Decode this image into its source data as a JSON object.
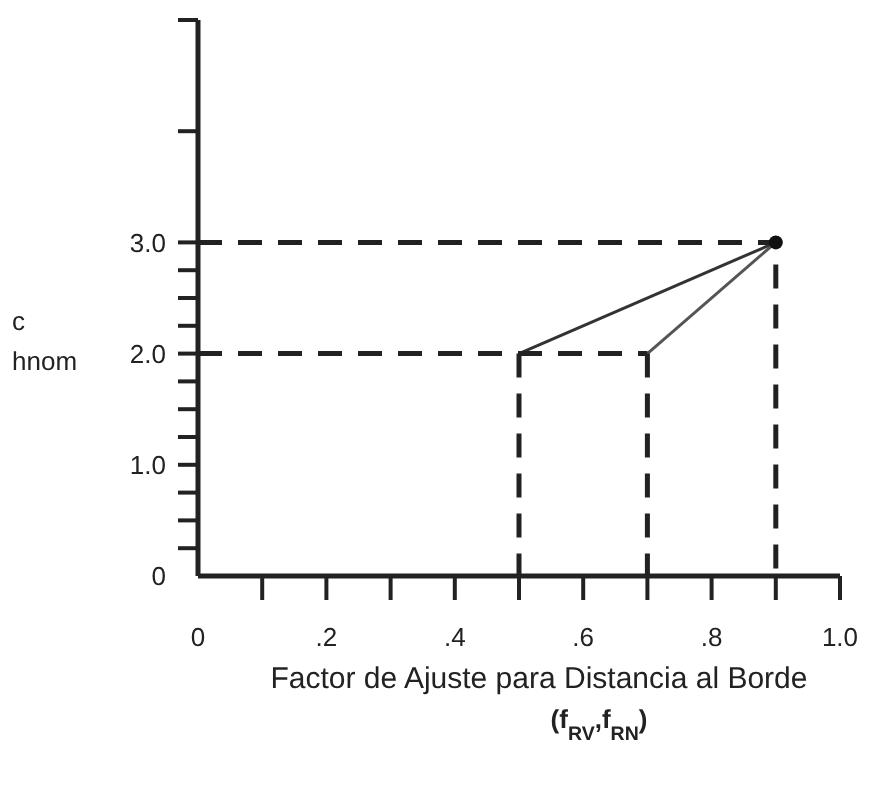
{
  "chart_data": {
    "type": "line",
    "xlabel": "Factor de Ajuste para Distancia al Borde",
    "ylabel": "c hnom",
    "annotations": [
      "(f$_{RV}$,f$_{RN}$)"
    ],
    "xlim": [
      0,
      1.0
    ],
    "xticks": [
      {
        "value": 0,
        "label": "0"
      },
      {
        "value": 0.1,
        "label": null
      },
      {
        "value": 0.2,
        "label": ".2"
      },
      {
        "value": 0.3,
        "label": null
      },
      {
        "value": 0.4,
        "label": ".4"
      },
      {
        "value": 0.5,
        "label": null
      },
      {
        "value": 0.6,
        "label": ".6"
      },
      {
        "value": 0.7,
        "label": null
      },
      {
        "value": 0.8,
        "label": ".8"
      },
      {
        "value": 0.9,
        "label": null
      },
      {
        "value": 1.0,
        "label": "1.0"
      }
    ],
    "ylim": [
      0,
      5
    ],
    "yticks": [
      {
        "value": 0,
        "label": "0"
      },
      {
        "value": 0.25,
        "label": null
      },
      {
        "value": 0.5,
        "label": null
      },
      {
        "value": 0.75,
        "label": null
      },
      {
        "value": 1,
        "label": "1.0"
      },
      {
        "value": 1.25,
        "label": null
      },
      {
        "value": 1.5,
        "label": null
      },
      {
        "value": 1.75,
        "label": null
      },
      {
        "value": 2,
        "label": "2.0"
      },
      {
        "value": 2.25,
        "label": null
      },
      {
        "value": 2.5,
        "label": null
      },
      {
        "value": 2.75,
        "label": null
      },
      {
        "value": 3,
        "label": "3.0"
      },
      {
        "value": 4,
        "label": null
      },
      {
        "value": 5,
        "label": null
      }
    ],
    "grid": false,
    "marker": "none",
    "series": [
      {
        "color": "#333333",
        "x": [
          0.5,
          0.9
        ],
        "values": [
          2,
          3
        ],
        "line_style": "solid"
      },
      {
        "color": "#555555",
        "x": [
          0.7,
          0.9
        ],
        "values": [
          2,
          3
        ],
        "line_style": "solid"
      },
      {
        "color": "#222222",
        "x": [
          0,
          0.9,
          0.9
        ],
        "values": [
          3,
          3,
          0
        ],
        "line_style": "dashed"
      },
      {
        "color": "#222222",
        "x": [
          0,
          0.7
        ],
        "values": [
          2,
          2
        ],
        "line_style": "dashed"
      },
      {
        "color": "#222222",
        "x": [
          0.5,
          0.5
        ],
        "values": [
          2,
          0
        ],
        "line_style": "dashed"
      },
      {
        "color": "#222222",
        "x": [
          0.7,
          0.7
        ],
        "values": [
          2,
          0
        ],
        "line_style": "dashed"
      },
      {
        "type": "scatter",
        "color": "#111111",
        "x": [
          0.9
        ],
        "values": [
          3
        ],
        "marker": "circle"
      }
    ]
  }
}
